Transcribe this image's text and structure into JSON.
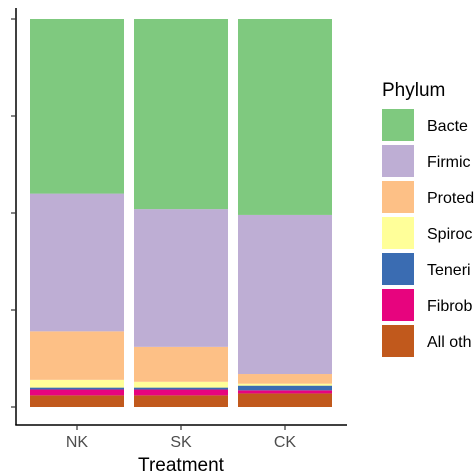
{
  "chart_data": {
    "type": "bar",
    "stacked": true,
    "categories": [
      "NK",
      "SK",
      "CK"
    ],
    "xlabel": "Treatment",
    "ylabel": "",
    "ylim": [
      0,
      1
    ],
    "y_ticks": [
      "",
      "",
      "",
      "",
      ""
    ],
    "legend_title": "Phylum",
    "legend_position": "right",
    "series": [
      {
        "name": "All oth",
        "color": "#c1591c",
        "values": [
          0.03,
          0.03,
          0.035
        ]
      },
      {
        "name": "Fibrob",
        "color": "#e7047e",
        "values": [
          0.015,
          0.015,
          0.008
        ]
      },
      {
        "name": "Teneri",
        "color": "#3a6cb2",
        "values": [
          0.005,
          0.005,
          0.012
        ]
      },
      {
        "name": "Spiroc",
        "color": "#ffff99",
        "values": [
          0.02,
          0.015,
          0.005
        ]
      },
      {
        "name": "Proted",
        "color": "#fdc086",
        "values": [
          0.125,
          0.09,
          0.025
        ]
      },
      {
        "name": "Firmic",
        "color": "#beaed4",
        "values": [
          0.355,
          0.355,
          0.41
        ]
      },
      {
        "name": "Bacte",
        "color": "#7fc97f",
        "values": [
          0.45,
          0.49,
          0.505
        ]
      }
    ],
    "grid": false
  }
}
